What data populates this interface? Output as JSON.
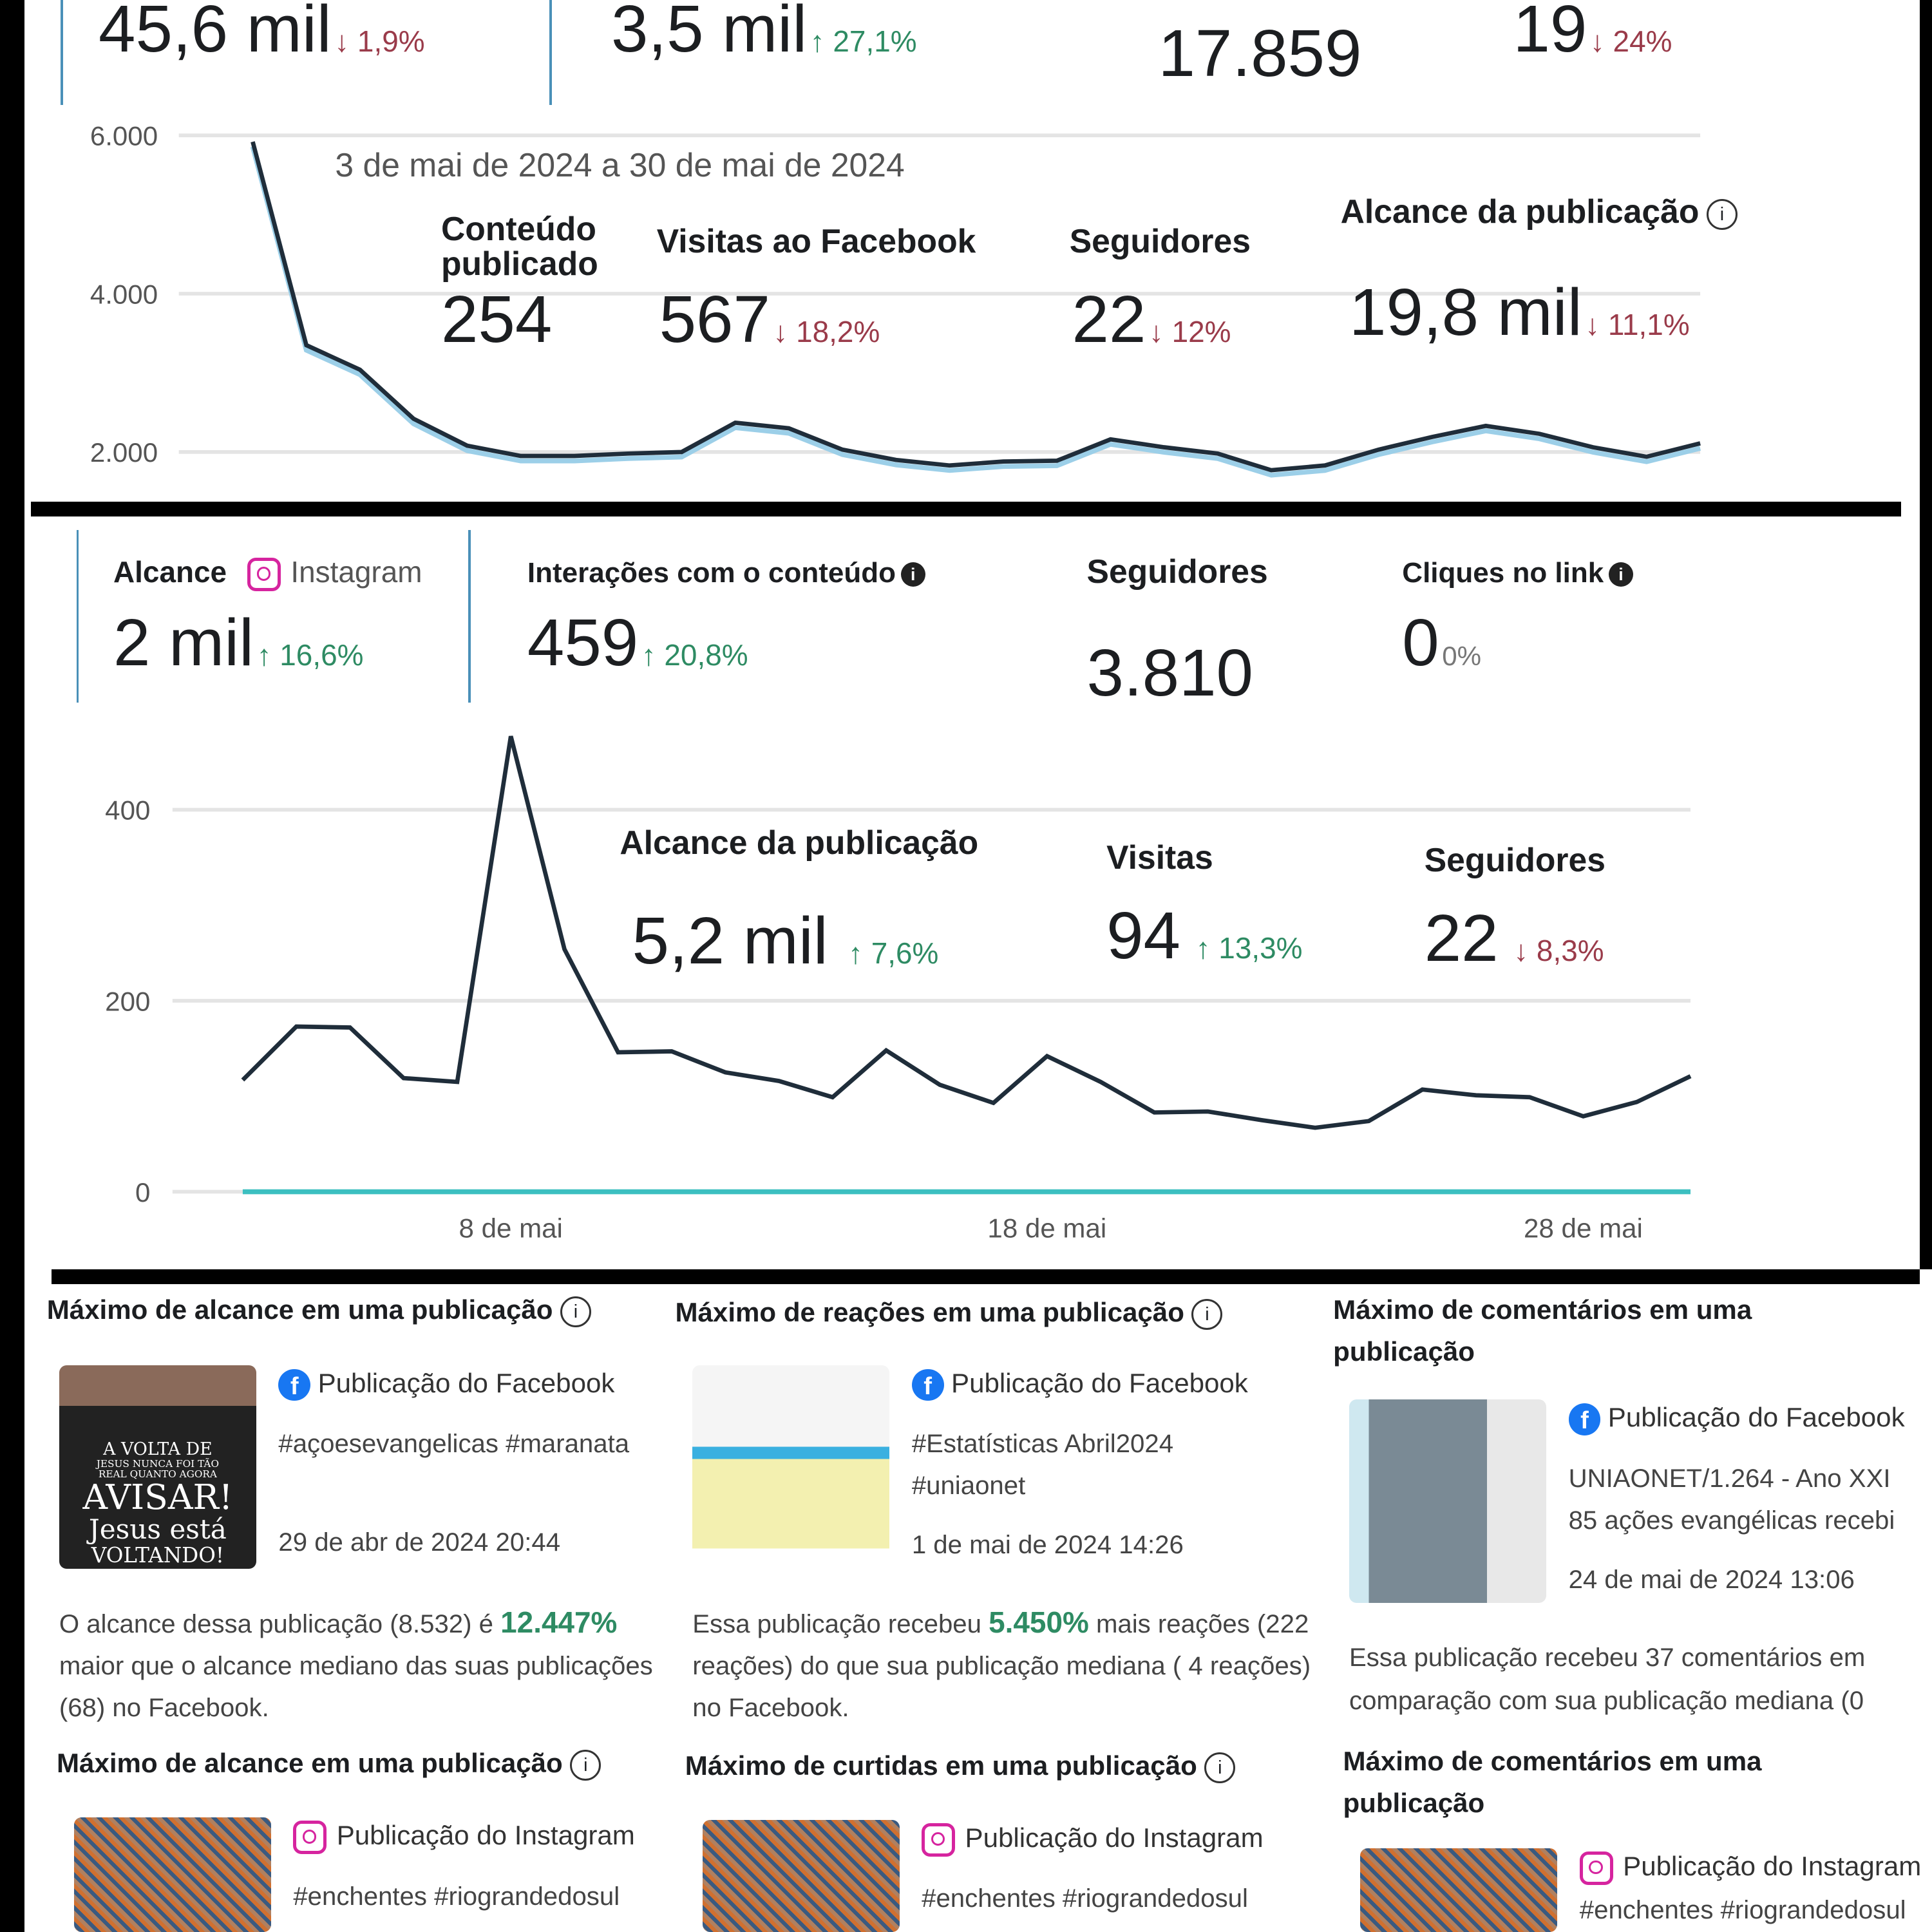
{
  "facebook_summary": {
    "top_metrics": [
      {
        "value": "45,6 mil",
        "change": "↓ 1,9%",
        "trend": "down"
      },
      {
        "value": "3,5 mil",
        "change": "↑ 27,1%",
        "trend": "up"
      },
      {
        "value": "17.859"
      },
      {
        "value": "19",
        "change": "↓ 24%",
        "trend": "down"
      }
    ],
    "date_range": "3 de mai de 2024 a 30 de mai de 2024",
    "metrics": [
      {
        "label": "Conteúdo publicado",
        "value": "254"
      },
      {
        "label": "Visitas ao Facebook",
        "value": "567",
        "change": "↓ 18,2%",
        "trend": "down"
      },
      {
        "label": "Seguidores",
        "value": "22",
        "change": "↓ 12%",
        "trend": "down"
      },
      {
        "label": "Alcance da publicação",
        "value": "19,8 mil",
        "change": "↓ 11,1%",
        "trend": "down",
        "icon": "info-icon"
      }
    ]
  },
  "instagram_summary": {
    "metrics": [
      {
        "label": "Alcance",
        "platform": "Instagram",
        "value": "2 mil",
        "change": "↑ 16,6%",
        "trend": "up",
        "icon": "instagram-icon"
      },
      {
        "label": "Interações com o conteúdo",
        "value": "459",
        "change": "↑ 20,8%",
        "trend": "up",
        "icon": "info-icon"
      },
      {
        "label": "Seguidores",
        "value": "3.810"
      },
      {
        "label": "Cliques no link",
        "value": "0",
        "change": "0%",
        "icon": "info-icon"
      }
    ],
    "overlay_metrics": [
      {
        "label": "Alcance da publicação",
        "value": "5,2 mil",
        "change": "↑ 7,6%",
        "trend": "up"
      },
      {
        "label": "Visitas",
        "value": "94",
        "change": "↑ 13,3%",
        "trend": "up"
      },
      {
        "label": "Seguidores",
        "value": "22",
        "change": "↓ 8,3%",
        "trend": "down"
      }
    ]
  },
  "colors": {
    "up": "#2e8b63",
    "down": "#9a3b4a",
    "line": "#1f2d3a",
    "accent": "#4a90b8",
    "teal": "#3cbfc0",
    "facebook": "#1877f2",
    "instagram": "#d6249f"
  },
  "chart_data": [
    {
      "type": "line",
      "ylim": [
        1700,
        6000
      ],
      "yticks": [
        "6.000",
        "4.000",
        "2.000"
      ],
      "ytick_values": [
        6000,
        4000,
        2000
      ],
      "grid": true,
      "x": [
        "3 mai",
        "4 mai",
        "5 mai",
        "6 mai",
        "7 mai",
        "8 mai",
        "9 mai",
        "10 mai",
        "11 mai",
        "12 mai",
        "13 mai",
        "14 mai",
        "15 mai",
        "16 mai",
        "17 mai",
        "18 mai",
        "19 mai",
        "20 mai",
        "21 mai",
        "22 mai",
        "23 mai",
        "24 mai",
        "25 mai",
        "26 mai",
        "27 mai",
        "28 mai",
        "29 mai",
        "30 mai"
      ],
      "series": [
        {
          "values": [
            5920,
            3350,
            3040,
            2420,
            2080,
            1950,
            1950,
            1980,
            2000,
            2370,
            2300,
            2030,
            1900,
            1830,
            1880,
            1890,
            2160,
            2060,
            1980,
            1770,
            1830,
            2030,
            2190,
            2330,
            2230,
            2060,
            1940,
            2110
          ]
        }
      ]
    },
    {
      "type": "line",
      "ylim": [
        0,
        480
      ],
      "yticks": [
        "400",
        "200",
        "0"
      ],
      "ytick_values": [
        400,
        200,
        0
      ],
      "xticks": [
        "8 de mai",
        "18 de mai",
        "28 de mai"
      ],
      "grid": true,
      "x": [
        "3 mai",
        "4 mai",
        "5 mai",
        "6 mai",
        "7 mai",
        "8 mai",
        "9 mai",
        "10 mai",
        "11 mai",
        "12 mai",
        "13 mai",
        "14 mai",
        "15 mai",
        "16 mai",
        "17 mai",
        "18 mai",
        "19 mai",
        "20 mai",
        "21 mai",
        "22 mai",
        "23 mai",
        "24 mai",
        "25 mai",
        "26 mai",
        "27 mai",
        "28 mai",
        "29 mai",
        "30 mai"
      ],
      "series": [
        {
          "values": [
            117,
            173,
            172,
            119,
            115,
            477,
            254,
            146,
            147,
            125,
            116,
            99,
            148,
            112,
            93,
            142,
            115,
            83,
            84,
            75,
            67,
            74,
            107,
            101,
            99,
            79,
            94,
            121
          ]
        },
        {
          "values": [
            0,
            0,
            0,
            0,
            0,
            0,
            0,
            0,
            0,
            0,
            0,
            0,
            0,
            0,
            0,
            0,
            0,
            0,
            0,
            0,
            0,
            0,
            0,
            0,
            0,
            0,
            0,
            0
          ]
        }
      ]
    }
  ],
  "highlights": [
    {
      "title": "Máximo de alcance em uma publicação",
      "source": "Publicação do Facebook",
      "caption": "#açoesevangelicas #maranata",
      "date": "29 de abr de 2024 20:44",
      "desc_pre": "O alcance dessa publicação (8.532) é ",
      "desc_hl": "12.447%",
      "desc_post": " maior que o alcance mediano das suas publicações (68) no Facebook.",
      "thumb_text": [
        "A VOLTA DE",
        "JESUS NUNCA FOI TÃO",
        "REAL QUANTO AGORA",
        "AVISAR!",
        "Jesus está",
        "VOLTANDO!"
      ]
    },
    {
      "title": "Máximo de reações em uma publicação",
      "source": "Publicação do Facebook",
      "caption": "#Estatísticas Abril2024",
      "caption2": "#uniaonet",
      "date": "1 de mai de 2024 14:26",
      "desc_pre": "Essa publicação recebeu ",
      "desc_hl": "5.450%",
      "desc_post": " mais reações (222 reações) do que sua publicação mediana ( 4 reações) no Facebook."
    },
    {
      "title": "Máximo de comentários em uma publicação",
      "source": "Publicação do Facebook",
      "caption": "UNIAONET/1.264 - Ano XXI",
      "caption2": "85 ações evangélicas recebi",
      "date": "24 de mai de 2024 13:06",
      "desc_pre": "Essa publicação recebeu 37 comentários em comparação com sua publicação mediana (0",
      "desc_hl": "",
      "desc_post": ""
    },
    {
      "title": "Máximo de alcance em uma publicação",
      "source": "Publicação do Instagram",
      "caption": "#enchentes #riograndedosul"
    },
    {
      "title": "Máximo de curtidas em uma publicação",
      "source": "Publicação do Instagram",
      "caption": "#enchentes #riograndedosul"
    },
    {
      "title": "Máximo de comentários em uma publicação",
      "source": "Publicação do Instagram",
      "caption": "#enchentes #riograndedosul"
    }
  ]
}
